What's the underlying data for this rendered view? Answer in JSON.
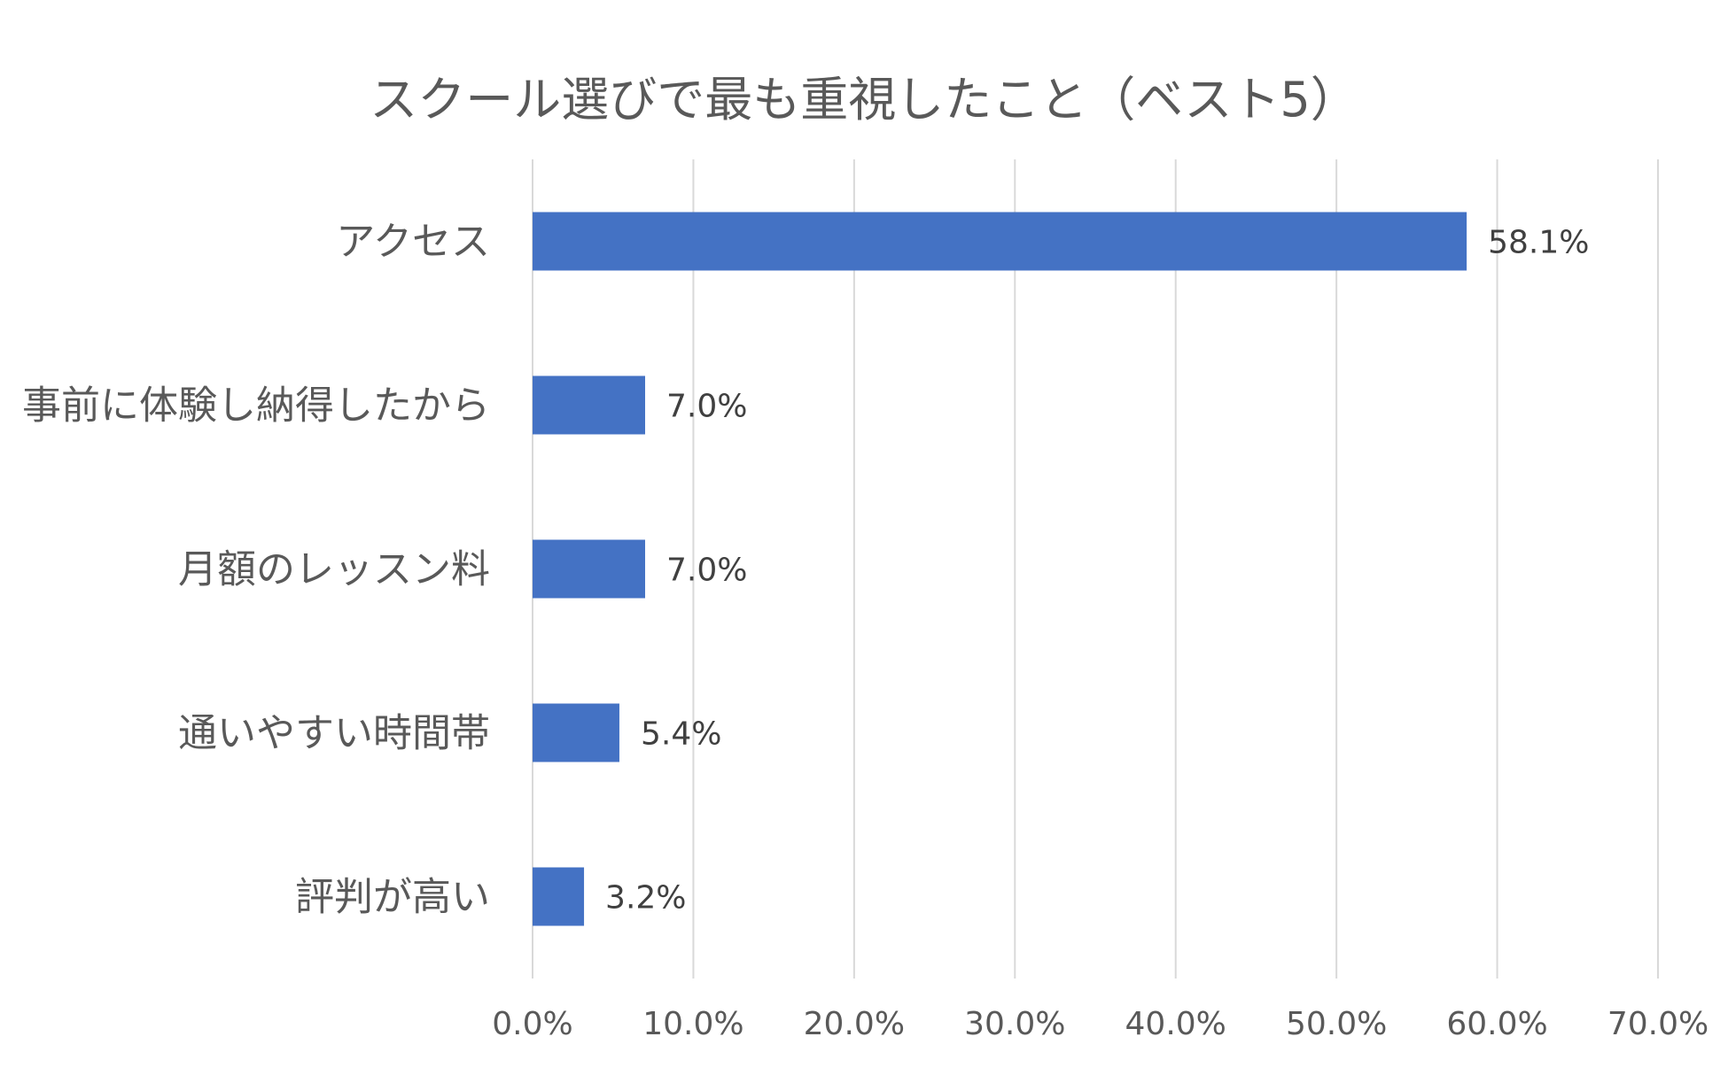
{
  "chart_data": {
    "type": "bar",
    "orientation": "horizontal",
    "title": "スクール選びで最も重視したこと（ベスト5）",
    "categories": [
      "アクセス",
      "事前に体験し納得したから",
      "月額のレッスン料",
      "通いやすい時間帯",
      "評判が高い"
    ],
    "values": [
      58.1,
      7.0,
      7.0,
      5.4,
      3.2
    ],
    "data_labels": [
      "58.1%",
      "7.0%",
      "7.0%",
      "5.4%",
      "3.2%"
    ],
    "xlim": [
      0,
      70
    ],
    "x_ticks": [
      0,
      10,
      20,
      30,
      40,
      50,
      60,
      70
    ],
    "x_tick_labels": [
      "0.0%",
      "10.0%",
      "20.0%",
      "30.0%",
      "40.0%",
      "50.0%",
      "60.0%",
      "70.0%"
    ],
    "xlabel": "",
    "ylabel": "",
    "grid": "vertical",
    "legend": "none",
    "bar_color": "#4472C4",
    "grid_color": "#D9D9D9"
  }
}
